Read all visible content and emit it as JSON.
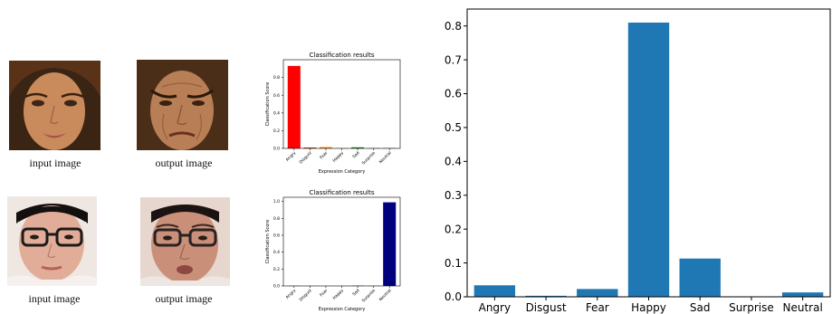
{
  "figure": {
    "rows": [
      {
        "input_caption": "input image",
        "output_caption": "output image"
      },
      {
        "input_caption": "input image",
        "output_caption": "output image"
      }
    ]
  },
  "chart_data": [
    {
      "type": "bar",
      "title": "Classification results",
      "xlabel": "Expression Category",
      "ylabel": "Classification Score",
      "categories": [
        "Angry",
        "Disgust",
        "Fear",
        "Happy",
        "Sad",
        "Surprise",
        "Neutral"
      ],
      "values": [
        0.93,
        0.01,
        0.015,
        0.004,
        0.012,
        0.004,
        0.003
      ],
      "colors": [
        "#ff0000",
        "#cc3300",
        "#ff8c00",
        "#d4c400",
        "#008000",
        "#1f77b4",
        "#00007f"
      ],
      "ylim": [
        0,
        1.0
      ],
      "yticks": [
        "0.0",
        "0.2",
        "0.4",
        "0.6",
        "0.8"
      ]
    },
    {
      "type": "bar",
      "title": "Classification results",
      "xlabel": "Expression Category",
      "ylabel": "Classification Score",
      "categories": [
        "Angry",
        "Disgust",
        "Fear",
        "Happy",
        "Sad",
        "Surprise",
        "Neutral"
      ],
      "values": [
        0.002,
        0.001,
        0.001,
        0.002,
        0.004,
        0.002,
        0.99
      ],
      "colors": [
        "#ff0000",
        "#cc3300",
        "#ff8c00",
        "#d4c400",
        "#008000",
        "#1f77b4",
        "#00007f"
      ],
      "ylim": [
        0,
        1.05
      ],
      "yticks": [
        "0.0",
        "0.2",
        "0.4",
        "0.6",
        "0.8",
        "1.0"
      ]
    },
    {
      "type": "bar",
      "title": "",
      "xlabel": "",
      "ylabel": "",
      "categories": [
        "Angry",
        "Disgust",
        "Fear",
        "Happy",
        "Sad",
        "Surprise",
        "Neutral"
      ],
      "values": [
        0.034,
        0.003,
        0.023,
        0.81,
        0.113,
        0.0,
        0.013
      ],
      "colors": [
        "#1f77b4",
        "#1f77b4",
        "#1f77b4",
        "#1f77b4",
        "#1f77b4",
        "#1f77b4",
        "#1f77b4"
      ],
      "ylim": [
        0,
        0.85
      ],
      "yticks": [
        "0.0",
        "0.1",
        "0.2",
        "0.3",
        "0.4",
        "0.5",
        "0.6",
        "0.7",
        "0.8"
      ]
    }
  ]
}
